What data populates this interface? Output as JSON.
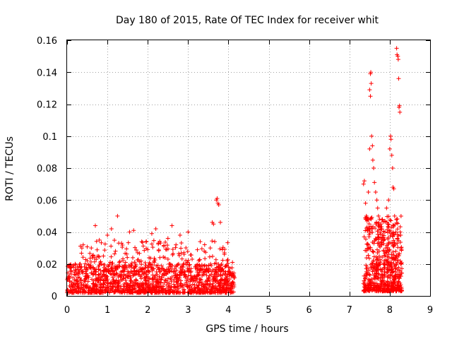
{
  "chart_data": {
    "type": "scatter",
    "title": "Day 180 of 2015, Rate Of TEC Index for receiver whit",
    "xlabel": "GPS time / hours",
    "ylabel": "ROTI / TECUs",
    "xlim": [
      0,
      9
    ],
    "ylim": [
      0,
      0.16
    ],
    "x_ticks": [
      0,
      1,
      2,
      3,
      4,
      5,
      6,
      7,
      8,
      9
    ],
    "x_tick_labels": [
      "0",
      "1",
      "2",
      "3",
      "4",
      "5",
      "6",
      "7",
      "8",
      "9"
    ],
    "y_ticks": [
      0,
      0.02,
      0.04,
      0.06,
      0.08,
      0.1,
      0.12,
      0.14,
      0.16
    ],
    "y_tick_labels": [
      "0",
      "0.02",
      "0.04",
      "0.06",
      "0.08",
      "0.1",
      "0.12",
      "0.14",
      "0.16"
    ],
    "grid": true,
    "marker": "+",
    "color": "#ff0000",
    "series": [
      {
        "name": "ROTI",
        "points": [
          [
            0.05,
            0.012
          ],
          [
            0.1,
            0.018
          ],
          [
            0.15,
            0.008
          ],
          [
            0.2,
            0.02
          ],
          [
            0.25,
            0.006
          ],
          [
            0.3,
            0.015
          ],
          [
            0.35,
            0.01
          ],
          [
            0.4,
            0.032
          ],
          [
            0.45,
            0.009
          ],
          [
            0.5,
            0.022
          ],
          [
            0.55,
            0.005
          ],
          [
            0.6,
            0.03
          ],
          [
            0.65,
            0.014
          ],
          [
            0.7,
            0.044
          ],
          [
            0.75,
            0.011
          ],
          [
            0.8,
            0.035
          ],
          [
            0.85,
            0.007
          ],
          [
            0.9,
            0.025
          ],
          [
            0.95,
            0.004
          ],
          [
            1.0,
            0.038
          ],
          [
            1.05,
            0.016
          ],
          [
            1.1,
            0.042
          ],
          [
            1.15,
            0.009
          ],
          [
            1.2,
            0.028
          ],
          [
            1.25,
            0.05
          ],
          [
            1.3,
            0.013
          ],
          [
            1.35,
            0.033
          ],
          [
            1.4,
            0.006
          ],
          [
            1.45,
            0.021
          ],
          [
            1.5,
            0.012
          ],
          [
            1.55,
            0.04
          ],
          [
            1.6,
            0.018
          ],
          [
            1.65,
            0.041
          ],
          [
            1.7,
            0.008
          ],
          [
            1.75,
            0.027
          ],
          [
            1.8,
            0.015
          ],
          [
            1.85,
            0.034
          ],
          [
            1.9,
            0.005
          ],
          [
            1.95,
            0.019
          ],
          [
            2.0,
            0.029
          ],
          [
            2.05,
            0.011
          ],
          [
            2.1,
            0.039
          ],
          [
            2.15,
            0.017
          ],
          [
            2.2,
            0.042
          ],
          [
            2.25,
            0.009
          ],
          [
            2.3,
            0.024
          ],
          [
            2.35,
            0.006
          ],
          [
            2.4,
            0.031
          ],
          [
            2.45,
            0.014
          ],
          [
            2.5,
            0.036
          ],
          [
            2.55,
            0.02
          ],
          [
            2.6,
            0.044
          ],
          [
            2.65,
            0.01
          ],
          [
            2.7,
            0.032
          ],
          [
            2.75,
            0.007
          ],
          [
            2.8,
            0.038
          ],
          [
            2.85,
            0.016
          ],
          [
            2.9,
            0.026
          ],
          [
            2.95,
            0.012
          ],
          [
            3.0,
            0.04
          ],
          [
            3.05,
            0.009
          ],
          [
            3.1,
            0.023
          ],
          [
            3.15,
            0.005
          ],
          [
            3.2,
            0.019
          ],
          [
            3.25,
            0.013
          ],
          [
            3.3,
            0.034
          ],
          [
            3.35,
            0.008
          ],
          [
            3.4,
            0.028
          ],
          [
            3.45,
            0.015
          ],
          [
            3.5,
            0.011
          ],
          [
            3.55,
            0.03
          ],
          [
            3.6,
            0.046
          ],
          [
            3.63,
            0.045
          ],
          [
            3.66,
            0.034
          ],
          [
            3.7,
            0.06
          ],
          [
            3.72,
            0.061
          ],
          [
            3.74,
            0.058
          ],
          [
            3.76,
            0.057
          ],
          [
            3.8,
            0.046
          ],
          [
            3.85,
            0.029
          ],
          [
            3.9,
            0.026
          ],
          [
            3.95,
            0.011
          ],
          [
            4.0,
            0.018
          ],
          [
            4.05,
            0.014
          ],
          [
            4.1,
            0.021
          ],
          [
            4.13,
            0.008
          ],
          [
            7.35,
            0.07
          ],
          [
            7.37,
            0.072
          ],
          [
            7.4,
            0.058
          ],
          [
            7.42,
            0.05
          ],
          [
            7.45,
            0.048
          ],
          [
            7.47,
            0.065
          ],
          [
            7.5,
            0.092
          ],
          [
            7.52,
            0.139
          ],
          [
            7.53,
            0.14
          ],
          [
            7.54,
            0.133
          ],
          [
            7.5,
            0.129
          ],
          [
            7.52,
            0.125
          ],
          [
            7.55,
            0.1
          ],
          [
            7.57,
            0.094
          ],
          [
            7.58,
            0.085
          ],
          [
            7.6,
            0.08
          ],
          [
            7.62,
            0.071
          ],
          [
            7.65,
            0.065
          ],
          [
            7.68,
            0.06
          ],
          [
            7.7,
            0.055
          ],
          [
            7.72,
            0.05
          ],
          [
            7.75,
            0.048
          ],
          [
            7.78,
            0.045
          ],
          [
            7.8,
            0.042
          ],
          [
            7.82,
            0.038
          ],
          [
            7.85,
            0.035
          ],
          [
            7.88,
            0.04
          ],
          [
            7.9,
            0.03
          ],
          [
            7.92,
            0.055
          ],
          [
            7.95,
            0.045
          ],
          [
            7.97,
            0.06
          ],
          [
            8.0,
            0.092
          ],
          [
            8.02,
            0.1
          ],
          [
            8.03,
            0.098
          ],
          [
            8.05,
            0.088
          ],
          [
            8.07,
            0.08
          ],
          [
            8.08,
            0.068
          ],
          [
            8.1,
            0.067
          ],
          [
            8.12,
            0.05
          ],
          [
            8.15,
            0.04
          ],
          [
            8.17,
            0.155
          ],
          [
            8.18,
            0.151
          ],
          [
            8.2,
            0.15
          ],
          [
            8.21,
            0.148
          ],
          [
            8.22,
            0.136
          ],
          [
            8.23,
            0.118
          ],
          [
            8.24,
            0.119
          ],
          [
            8.25,
            0.115
          ],
          [
            8.26,
            0.04
          ],
          [
            8.27,
            0.038
          ],
          [
            8.28,
            0.03
          ]
        ],
        "dense_bands": [
          {
            "x_range": [
              0.0,
              4.15
            ],
            "y_range": [
              0.002,
              0.02
            ],
            "count": 1200
          },
          {
            "x_range": [
              0.3,
              4.0
            ],
            "y_range": [
              0.015,
              0.035
            ],
            "count": 250
          },
          {
            "x_range": [
              7.35,
              8.3
            ],
            "y_range": [
              0.003,
              0.05
            ],
            "count": 600
          }
        ]
      }
    ]
  }
}
